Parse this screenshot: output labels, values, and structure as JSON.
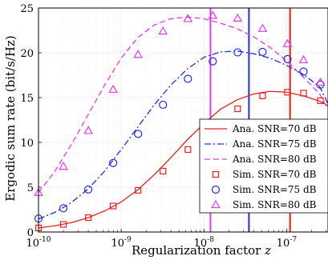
{
  "chart_data": {
    "type": "line",
    "xlabel": "Regularization factor",
    "xlabel_var": "z",
    "ylabel": "Ergodic sum rate (bit/s/Hz)",
    "x_scale": "log10",
    "xlim": [
      1e-10,
      3.162e-07
    ],
    "ylim": [
      0,
      25
    ],
    "grid": true,
    "legend_position": "bottom-right",
    "x_ticks": [
      {
        "base": "10",
        "exp": "-10"
      },
      {
        "base": "10",
        "exp": "-9"
      },
      {
        "base": "10",
        "exp": "-8"
      },
      {
        "base": "10",
        "exp": "-7"
      }
    ],
    "y_ticks": [
      "0",
      "5",
      "10",
      "15",
      "20",
      "25"
    ],
    "series": [
      {
        "name": "Ana. SNR=70 dB",
        "color": "#e8201a",
        "style": "solid",
        "x": [
          1e-10,
          1.585e-10,
          2.512e-10,
          3.981e-10,
          6.31e-10,
          1e-09,
          1.585e-09,
          2.512e-09,
          3.981e-09,
          6.31e-09,
          1e-08,
          1.585e-08,
          2.512e-08,
          3.981e-08,
          6.31e-08,
          1e-07,
          1.585e-07,
          2.512e-07,
          3.162e-07
        ],
        "y": [
          0.45,
          0.7,
          1.05,
          1.6,
          2.35,
          3.35,
          4.7,
          6.4,
          8.3,
          10.3,
          12.1,
          13.7,
          14.75,
          15.4,
          15.7,
          15.6,
          15.2,
          14.6,
          14.1
        ]
      },
      {
        "name": "Ana. SNR=75 dB",
        "color": "#1c2de8",
        "style": "dashdot",
        "x": [
          1e-10,
          1.585e-10,
          2.512e-10,
          3.981e-10,
          6.31e-10,
          1e-09,
          1.585e-09,
          2.512e-09,
          3.981e-09,
          6.31e-09,
          1e-08,
          1.585e-08,
          2.512e-08,
          3.981e-08,
          6.31e-08,
          1e-07,
          1.585e-07,
          2.512e-07,
          3.162e-07
        ],
        "y": [
          1.45,
          2.2,
          3.3,
          4.8,
          6.8,
          9.2,
          11.7,
          14.2,
          16.4,
          18.2,
          19.5,
          20.1,
          20.2,
          19.9,
          19.4,
          18.6,
          17.6,
          16.2,
          14.3
        ]
      },
      {
        "name": "Ana. SNR=80 dB",
        "color": "#e23ae8",
        "style": "dashed",
        "x": [
          1e-10,
          1.585e-10,
          2.512e-10,
          3.981e-10,
          6.31e-10,
          1e-09,
          1.585e-09,
          2.512e-09,
          3.981e-09,
          6.31e-09,
          1e-08,
          1.585e-08,
          2.512e-08,
          3.981e-08,
          6.31e-08,
          1e-07,
          1.585e-07,
          2.512e-07,
          3.162e-07
        ],
        "y": [
          4.4,
          6.8,
          9.8,
          13.1,
          16.4,
          19.4,
          21.7,
          23.1,
          23.8,
          24.0,
          23.8,
          23.3,
          22.7,
          21.8,
          20.6,
          19.1,
          17.3,
          15.4,
          13.7
        ]
      },
      {
        "name": "Sim. SNR=70 dB",
        "color": "#e8201a",
        "marker": "square",
        "x": [
          1e-10,
          2e-10,
          4e-10,
          8e-10,
          1.6e-09,
          3.2e-09,
          6.4e-09,
          1.28e-08,
          2.56e-08,
          5.12e-08,
          1.024e-07,
          1.6e-07,
          2.56e-07
        ],
        "y": [
          0.45,
          0.85,
          1.6,
          2.9,
          4.65,
          6.8,
          9.2,
          11.5,
          13.75,
          15.2,
          15.6,
          15.5,
          14.65
        ]
      },
      {
        "name": "Sim. SNR=75 dB",
        "color": "#1c2de8",
        "marker": "circle",
        "x": [
          1e-10,
          2e-10,
          4e-10,
          8e-10,
          1.6e-09,
          3.2e-09,
          6.4e-09,
          1.28e-08,
          2.56e-08,
          5.12e-08,
          1.024e-07,
          1.6e-07,
          2.56e-07
        ],
        "y": [
          1.5,
          2.65,
          4.75,
          7.7,
          10.95,
          14.2,
          17.1,
          19.05,
          20.05,
          20.1,
          19.3,
          17.9,
          16.45
        ]
      },
      {
        "name": "Sim. SNR=80 dB",
        "color": "#e23ae8",
        "marker": "triangle",
        "x": [
          1e-10,
          2e-10,
          4e-10,
          8e-10,
          1.6e-09,
          3.2e-09,
          6.4e-09,
          1.28e-08,
          2.56e-08,
          5.12e-08,
          1.024e-07,
          1.6e-07,
          2.56e-07
        ],
        "y": [
          4.4,
          7.3,
          11.3,
          15.9,
          19.8,
          22.4,
          23.8,
          24.15,
          23.85,
          22.7,
          21.0,
          19.2,
          16.7
        ]
      }
    ],
    "vertical_lines": [
      {
        "x": 1.2e-08,
        "color": "#e23ae8"
      },
      {
        "x": 3.5e-08,
        "color": "#1c2de8"
      },
      {
        "x": 1.1e-07,
        "color": "#e8201a"
      }
    ]
  }
}
